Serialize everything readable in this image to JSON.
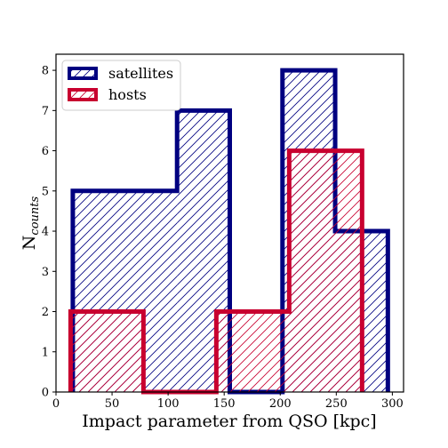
{
  "chart_data": {
    "type": "bar",
    "subtype": "step-histogram",
    "xlabel": "Impact parameter from QSO [kpc]",
    "ylabel": "N",
    "ylabel_subscript": "counts",
    "xlim": [
      0,
      310
    ],
    "ylim": [
      0,
      8.4
    ],
    "xticks": [
      0,
      50,
      100,
      150,
      200,
      250,
      300
    ],
    "yticks": [
      0,
      1,
      2,
      3,
      4,
      5,
      6,
      7,
      8
    ],
    "grid": false,
    "legend_position": "top-left",
    "series": [
      {
        "name": "satellites",
        "color": "#000080",
        "hatch": "forward-diagonal",
        "bin_edges": [
          15,
          108,
          155,
          202,
          249,
          296
        ],
        "counts": [
          5,
          7,
          0,
          8,
          4
        ]
      },
      {
        "name": "hosts",
        "color": "#c8002f",
        "hatch": "forward-diagonal",
        "bin_edges": [
          13,
          78,
          143,
          208,
          273
        ],
        "counts": [
          2,
          0,
          2,
          6
        ]
      }
    ]
  }
}
